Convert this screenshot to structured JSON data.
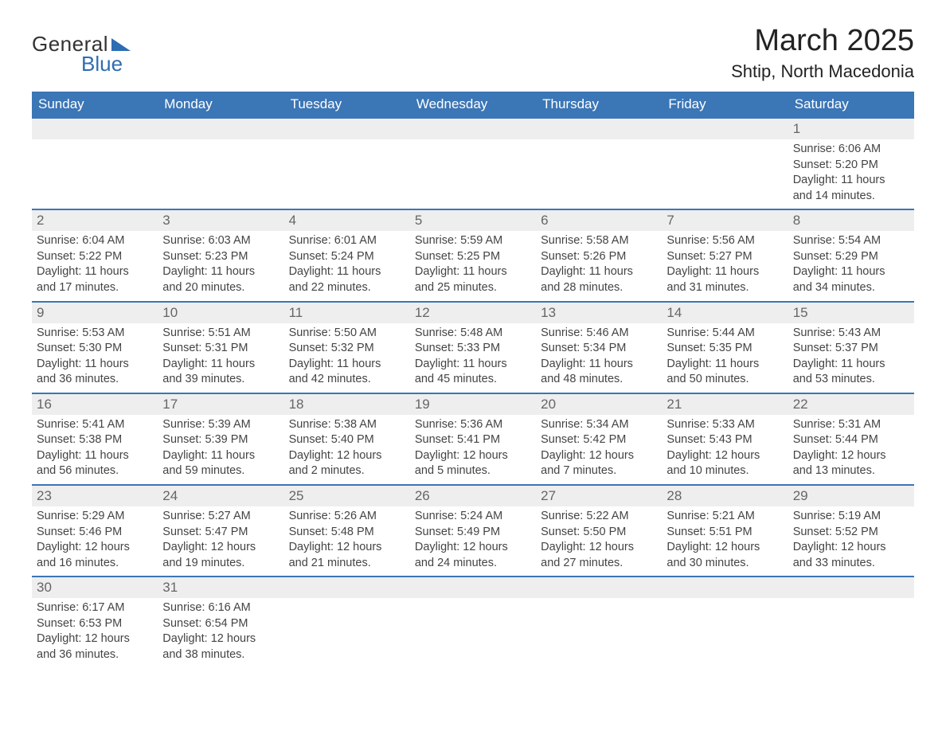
{
  "logo": {
    "text1": "General",
    "text2": "Blue",
    "shape_color": "#2d6db3",
    "text2_color": "#2d6db3"
  },
  "title": "March 2025",
  "location": "Shtip, North Macedonia",
  "colors": {
    "header_bg": "#3b76b6",
    "header_text": "#ffffff",
    "daynum_bg": "#eeeeee",
    "row_border": "#3b76b6",
    "text": "#444444"
  },
  "days_of_week": [
    "Sunday",
    "Monday",
    "Tuesday",
    "Wednesday",
    "Thursday",
    "Friday",
    "Saturday"
  ],
  "weeks": [
    [
      null,
      null,
      null,
      null,
      null,
      null,
      {
        "n": "1",
        "sunrise": "Sunrise: 6:06 AM",
        "sunset": "Sunset: 5:20 PM",
        "d1": "Daylight: 11 hours",
        "d2": "and 14 minutes."
      }
    ],
    [
      {
        "n": "2",
        "sunrise": "Sunrise: 6:04 AM",
        "sunset": "Sunset: 5:22 PM",
        "d1": "Daylight: 11 hours",
        "d2": "and 17 minutes."
      },
      {
        "n": "3",
        "sunrise": "Sunrise: 6:03 AM",
        "sunset": "Sunset: 5:23 PM",
        "d1": "Daylight: 11 hours",
        "d2": "and 20 minutes."
      },
      {
        "n": "4",
        "sunrise": "Sunrise: 6:01 AM",
        "sunset": "Sunset: 5:24 PM",
        "d1": "Daylight: 11 hours",
        "d2": "and 22 minutes."
      },
      {
        "n": "5",
        "sunrise": "Sunrise: 5:59 AM",
        "sunset": "Sunset: 5:25 PM",
        "d1": "Daylight: 11 hours",
        "d2": "and 25 minutes."
      },
      {
        "n": "6",
        "sunrise": "Sunrise: 5:58 AM",
        "sunset": "Sunset: 5:26 PM",
        "d1": "Daylight: 11 hours",
        "d2": "and 28 minutes."
      },
      {
        "n": "7",
        "sunrise": "Sunrise: 5:56 AM",
        "sunset": "Sunset: 5:27 PM",
        "d1": "Daylight: 11 hours",
        "d2": "and 31 minutes."
      },
      {
        "n": "8",
        "sunrise": "Sunrise: 5:54 AM",
        "sunset": "Sunset: 5:29 PM",
        "d1": "Daylight: 11 hours",
        "d2": "and 34 minutes."
      }
    ],
    [
      {
        "n": "9",
        "sunrise": "Sunrise: 5:53 AM",
        "sunset": "Sunset: 5:30 PM",
        "d1": "Daylight: 11 hours",
        "d2": "and 36 minutes."
      },
      {
        "n": "10",
        "sunrise": "Sunrise: 5:51 AM",
        "sunset": "Sunset: 5:31 PM",
        "d1": "Daylight: 11 hours",
        "d2": "and 39 minutes."
      },
      {
        "n": "11",
        "sunrise": "Sunrise: 5:50 AM",
        "sunset": "Sunset: 5:32 PM",
        "d1": "Daylight: 11 hours",
        "d2": "and 42 minutes."
      },
      {
        "n": "12",
        "sunrise": "Sunrise: 5:48 AM",
        "sunset": "Sunset: 5:33 PM",
        "d1": "Daylight: 11 hours",
        "d2": "and 45 minutes."
      },
      {
        "n": "13",
        "sunrise": "Sunrise: 5:46 AM",
        "sunset": "Sunset: 5:34 PM",
        "d1": "Daylight: 11 hours",
        "d2": "and 48 minutes."
      },
      {
        "n": "14",
        "sunrise": "Sunrise: 5:44 AM",
        "sunset": "Sunset: 5:35 PM",
        "d1": "Daylight: 11 hours",
        "d2": "and 50 minutes."
      },
      {
        "n": "15",
        "sunrise": "Sunrise: 5:43 AM",
        "sunset": "Sunset: 5:37 PM",
        "d1": "Daylight: 11 hours",
        "d2": "and 53 minutes."
      }
    ],
    [
      {
        "n": "16",
        "sunrise": "Sunrise: 5:41 AM",
        "sunset": "Sunset: 5:38 PM",
        "d1": "Daylight: 11 hours",
        "d2": "and 56 minutes."
      },
      {
        "n": "17",
        "sunrise": "Sunrise: 5:39 AM",
        "sunset": "Sunset: 5:39 PM",
        "d1": "Daylight: 11 hours",
        "d2": "and 59 minutes."
      },
      {
        "n": "18",
        "sunrise": "Sunrise: 5:38 AM",
        "sunset": "Sunset: 5:40 PM",
        "d1": "Daylight: 12 hours",
        "d2": "and 2 minutes."
      },
      {
        "n": "19",
        "sunrise": "Sunrise: 5:36 AM",
        "sunset": "Sunset: 5:41 PM",
        "d1": "Daylight: 12 hours",
        "d2": "and 5 minutes."
      },
      {
        "n": "20",
        "sunrise": "Sunrise: 5:34 AM",
        "sunset": "Sunset: 5:42 PM",
        "d1": "Daylight: 12 hours",
        "d2": "and 7 minutes."
      },
      {
        "n": "21",
        "sunrise": "Sunrise: 5:33 AM",
        "sunset": "Sunset: 5:43 PM",
        "d1": "Daylight: 12 hours",
        "d2": "and 10 minutes."
      },
      {
        "n": "22",
        "sunrise": "Sunrise: 5:31 AM",
        "sunset": "Sunset: 5:44 PM",
        "d1": "Daylight: 12 hours",
        "d2": "and 13 minutes."
      }
    ],
    [
      {
        "n": "23",
        "sunrise": "Sunrise: 5:29 AM",
        "sunset": "Sunset: 5:46 PM",
        "d1": "Daylight: 12 hours",
        "d2": "and 16 minutes."
      },
      {
        "n": "24",
        "sunrise": "Sunrise: 5:27 AM",
        "sunset": "Sunset: 5:47 PM",
        "d1": "Daylight: 12 hours",
        "d2": "and 19 minutes."
      },
      {
        "n": "25",
        "sunrise": "Sunrise: 5:26 AM",
        "sunset": "Sunset: 5:48 PM",
        "d1": "Daylight: 12 hours",
        "d2": "and 21 minutes."
      },
      {
        "n": "26",
        "sunrise": "Sunrise: 5:24 AM",
        "sunset": "Sunset: 5:49 PM",
        "d1": "Daylight: 12 hours",
        "d2": "and 24 minutes."
      },
      {
        "n": "27",
        "sunrise": "Sunrise: 5:22 AM",
        "sunset": "Sunset: 5:50 PM",
        "d1": "Daylight: 12 hours",
        "d2": "and 27 minutes."
      },
      {
        "n": "28",
        "sunrise": "Sunrise: 5:21 AM",
        "sunset": "Sunset: 5:51 PM",
        "d1": "Daylight: 12 hours",
        "d2": "and 30 minutes."
      },
      {
        "n": "29",
        "sunrise": "Sunrise: 5:19 AM",
        "sunset": "Sunset: 5:52 PM",
        "d1": "Daylight: 12 hours",
        "d2": "and 33 minutes."
      }
    ],
    [
      {
        "n": "30",
        "sunrise": "Sunrise: 6:17 AM",
        "sunset": "Sunset: 6:53 PM",
        "d1": "Daylight: 12 hours",
        "d2": "and 36 minutes."
      },
      {
        "n": "31",
        "sunrise": "Sunrise: 6:16 AM",
        "sunset": "Sunset: 6:54 PM",
        "d1": "Daylight: 12 hours",
        "d2": "and 38 minutes."
      },
      null,
      null,
      null,
      null,
      null
    ]
  ]
}
